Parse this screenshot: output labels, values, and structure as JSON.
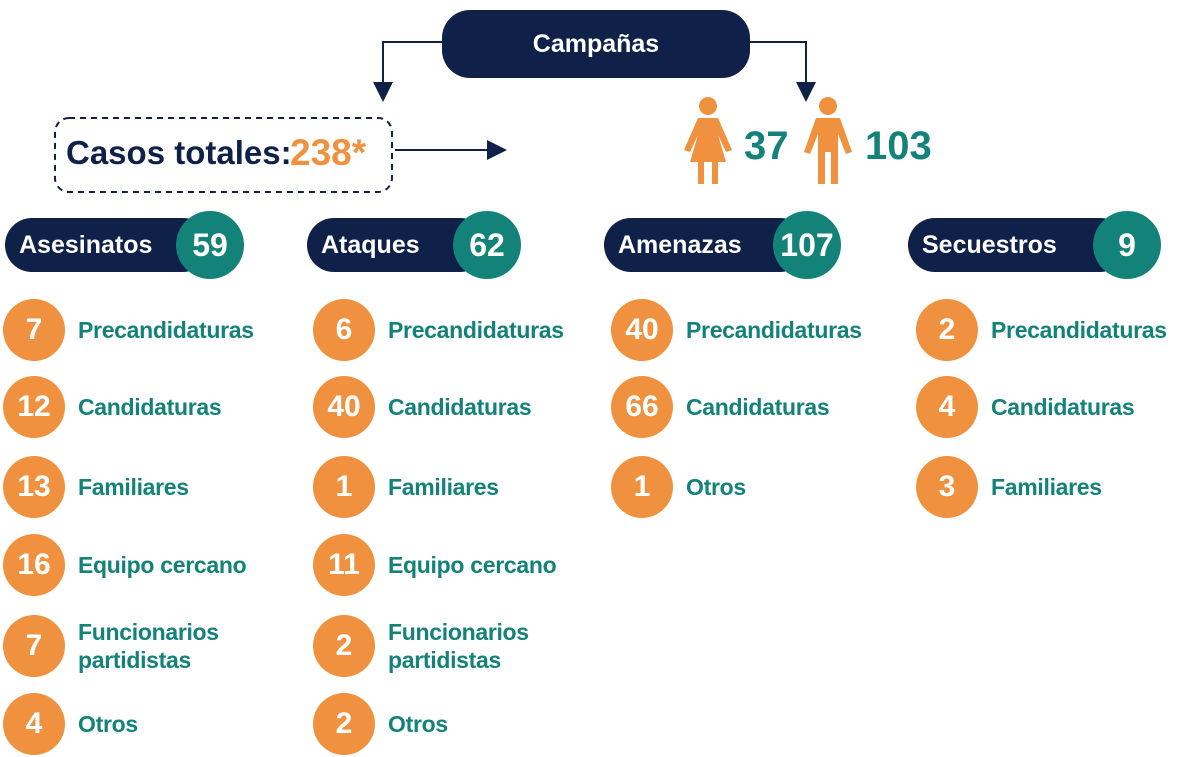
{
  "header": {
    "title": "Campañas",
    "total_label": "Casos totales:",
    "total_value": "238*",
    "women": 37,
    "men": 103
  },
  "groups": [
    {
      "name": "Asesinatos",
      "total": 59,
      "items": [
        {
          "value": 7,
          "label": "Precandidaturas"
        },
        {
          "value": 12,
          "label": "Candidaturas"
        },
        {
          "value": 13,
          "label": "Familiares"
        },
        {
          "value": 16,
          "label": "Equipo cercano"
        },
        {
          "value": 7,
          "label": "Funcionarios partidistas"
        },
        {
          "value": 4,
          "label": "Otros"
        }
      ]
    },
    {
      "name": "Ataques",
      "total": 62,
      "items": [
        {
          "value": 6,
          "label": "Precandidaturas"
        },
        {
          "value": 40,
          "label": "Candidaturas"
        },
        {
          "value": 1,
          "label": "Familiares"
        },
        {
          "value": 11,
          "label": "Equipo cercano"
        },
        {
          "value": 2,
          "label": "Funcionarios partidistas"
        },
        {
          "value": 2,
          "label": "Otros"
        }
      ]
    },
    {
      "name": "Amenazas",
      "total": 107,
      "items": [
        {
          "value": 40,
          "label": "Precandidaturas"
        },
        {
          "value": 66,
          "label": "Candidaturas"
        },
        {
          "value": 1,
          "label": "Otros"
        }
      ]
    },
    {
      "name": "Secuestros",
      "total": 9,
      "items": [
        {
          "value": 2,
          "label": "Precandidaturas"
        },
        {
          "value": 4,
          "label": "Candidaturas"
        },
        {
          "value": 3,
          "label": "Familiares"
        }
      ]
    }
  ]
}
